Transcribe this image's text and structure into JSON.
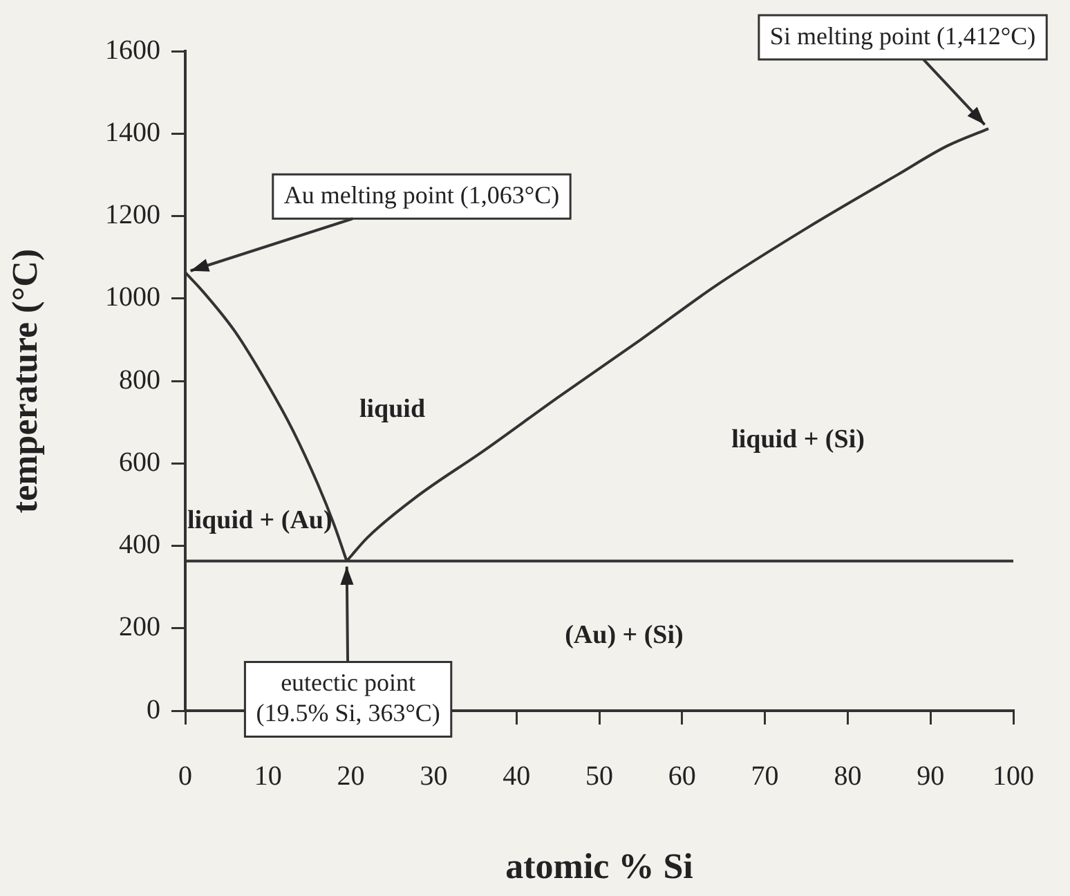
{
  "chart_data": {
    "type": "line",
    "xlabel": "atomic % Si",
    "ylabel": "temperature (°C)",
    "xlim": [
      0,
      100
    ],
    "xticks": [
      0,
      10,
      20,
      30,
      40,
      50,
      60,
      70,
      80,
      90,
      100
    ],
    "ylim": [
      0,
      1600
    ],
    "yticks": [
      0,
      200,
      400,
      600,
      800,
      1000,
      1200,
      1400,
      1600
    ],
    "grid": false,
    "legend": false,
    "marker": "none",
    "line_style": "solid",
    "series": [
      {
        "color": "#333333",
        "x": [
          0,
          2,
          6,
          10,
          13,
          16,
          18,
          19.5
        ],
        "values": [
          1063,
          1020,
          920,
          790,
          680,
          550,
          450,
          363
        ]
      },
      {
        "color": "#333333",
        "x": [
          19.5,
          22,
          28,
          36,
          45,
          55,
          64,
          75,
          86,
          92,
          97
        ],
        "values": [
          363,
          420,
          520,
          630,
          760,
          900,
          1030,
          1170,
          1300,
          1370,
          1412
        ]
      }
    ],
    "ref_lines": [
      {
        "axis": "y",
        "value": 363,
        "color": "#333333"
      }
    ],
    "annotations": [
      {
        "text": "Au melting point (1,063°C)",
        "x": 0,
        "y": 1063
      },
      {
        "text": "Si melting point (1,412°C)",
        "x": 97,
        "y": 1412
      },
      {
        "text": "eutectic point\n(19.5% Si, 363°C)",
        "x": 19.5,
        "y": 363
      },
      "liquid",
      "liquid + (Au)",
      "liquid + (Si)",
      "(Au) + (Si)"
    ]
  }
}
